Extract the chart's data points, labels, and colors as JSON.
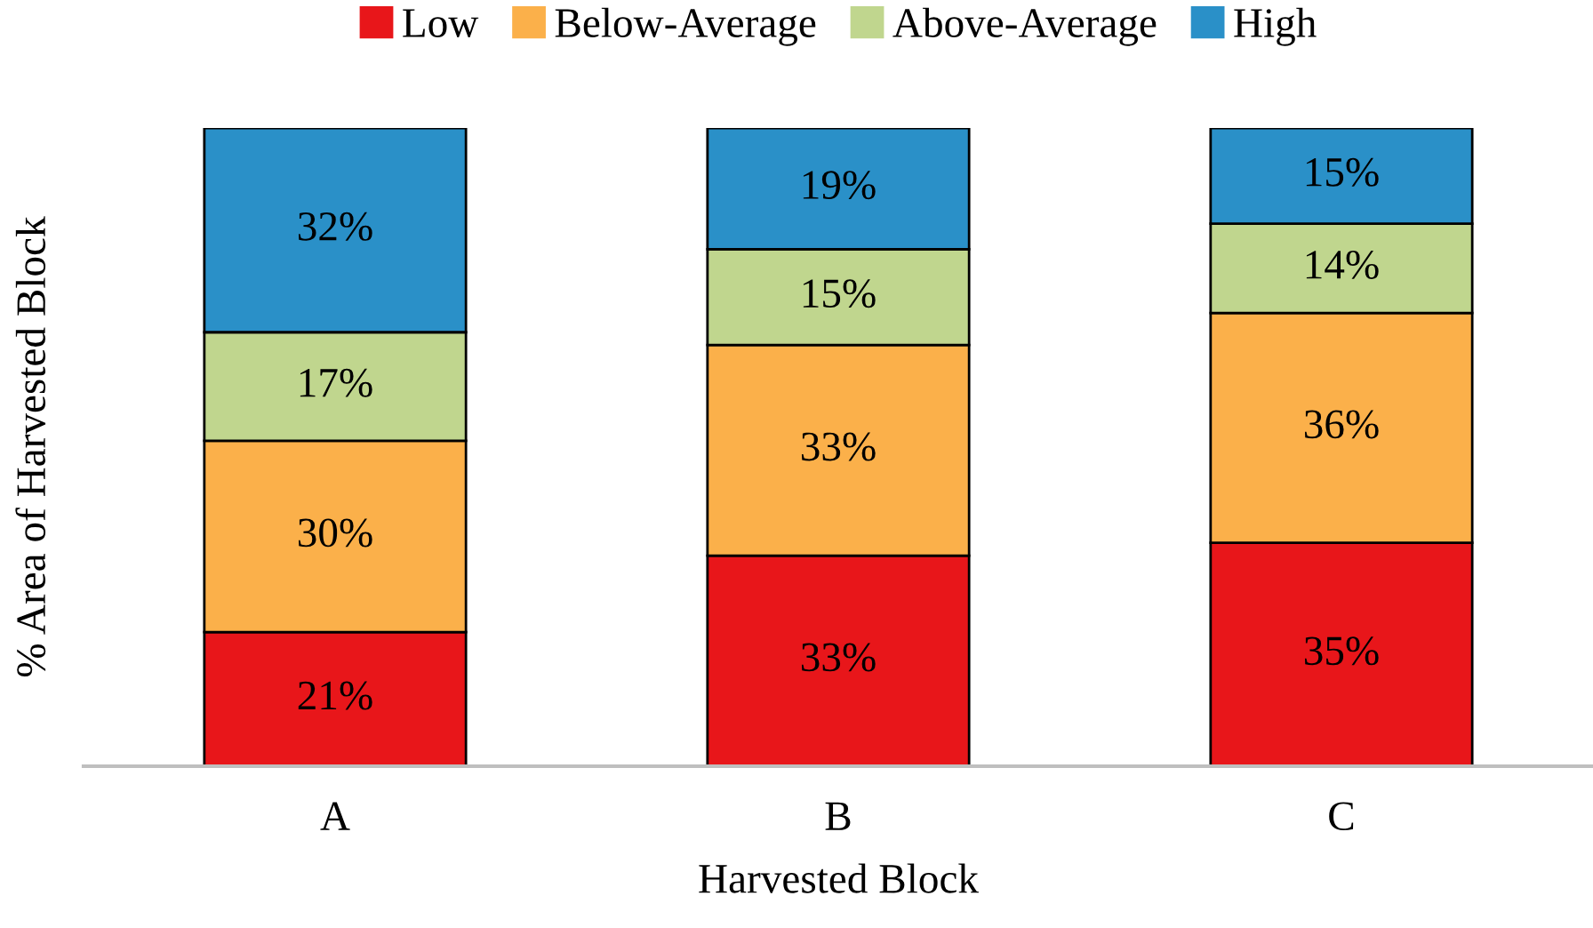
{
  "chart_data": {
    "type": "bar",
    "stacked": true,
    "xlabel": "Harvested Block",
    "ylabel": "% Area of Harvested Block",
    "categories": [
      "A",
      "B",
      "C"
    ],
    "series": [
      {
        "name": "Low",
        "color": "#e8161a",
        "values": [
          21,
          33,
          35
        ],
        "value_labels": [
          "21%",
          "33%",
          "35%"
        ]
      },
      {
        "name": "Below-Average",
        "color": "#fbb04a",
        "values": [
          30,
          33,
          36
        ],
        "value_labels": [
          "30%",
          "33%",
          "36%"
        ]
      },
      {
        "name": "Above-Average",
        "color": "#c0d68e",
        "values": [
          17,
          15,
          14
        ],
        "value_labels": [
          "17%",
          "15%",
          "14%"
        ]
      },
      {
        "name": "High",
        "color": "#2a90c8",
        "values": [
          32,
          19,
          15
        ],
        "value_labels": [
          "32%",
          "19%",
          "15%"
        ]
      }
    ],
    "legend": "top",
    "grid": false
  }
}
